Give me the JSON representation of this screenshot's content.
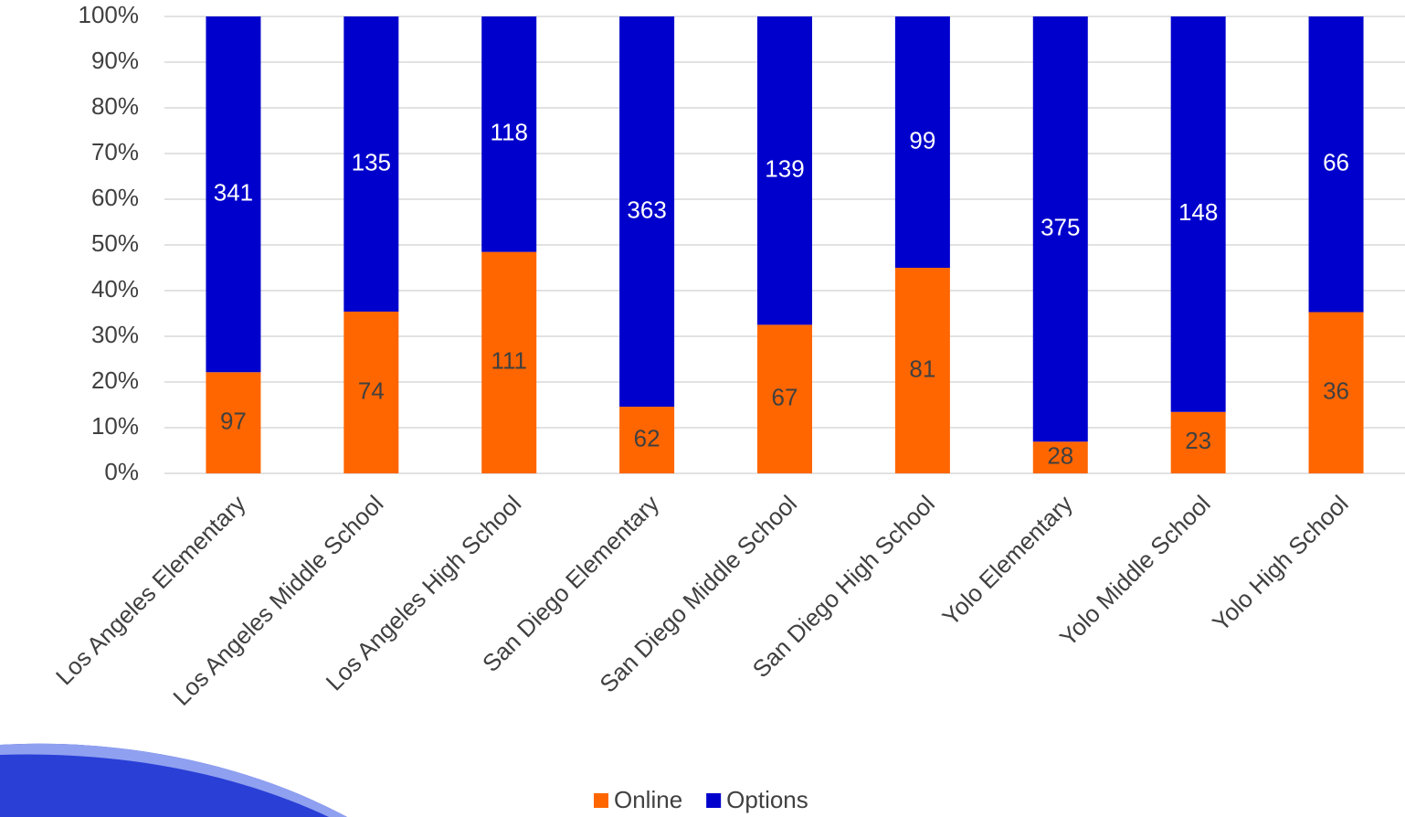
{
  "chart_data": {
    "type": "bar",
    "stacking": "percent",
    "categories": [
      "Los Angeles Elementary",
      "Los Angeles Middle School",
      "Los Angeles High School",
      "San Diego Elementary",
      "San Diego Middle School",
      "San Diego High School",
      "Yolo Elementary",
      "Yolo Middle School",
      "Yolo High School"
    ],
    "series": [
      {
        "name": "Online",
        "color": "#ff6600",
        "label_color": "#404040",
        "values": [
          97,
          74,
          111,
          62,
          67,
          81,
          28,
          23,
          36
        ]
      },
      {
        "name": "Options",
        "color": "#0000cc",
        "label_color": "#ffffff",
        "values": [
          341,
          135,
          118,
          363,
          139,
          99,
          375,
          148,
          66
        ]
      }
    ],
    "ylim": [
      0,
      100
    ],
    "yticks": [
      {
        "value": 0,
        "label": "0%"
      },
      {
        "value": 10,
        "label": "10%"
      },
      {
        "value": 20,
        "label": "20%"
      },
      {
        "value": 30,
        "label": "30%"
      },
      {
        "value": 40,
        "label": "40%"
      },
      {
        "value": 50,
        "label": "50%"
      },
      {
        "value": 60,
        "label": "60%"
      },
      {
        "value": 70,
        "label": "70%"
      },
      {
        "value": 80,
        "label": "80%"
      },
      {
        "value": 90,
        "label": "90%"
      },
      {
        "value": 100,
        "label": "100%"
      }
    ],
    "grid": true,
    "legend": "bottom"
  }
}
